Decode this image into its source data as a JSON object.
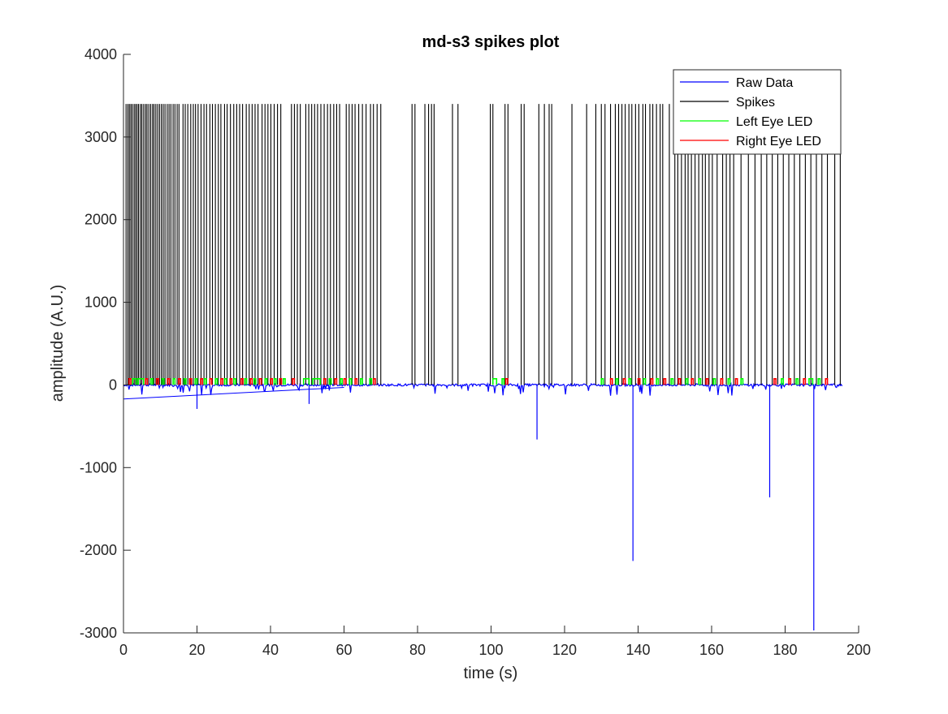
{
  "chart_data": {
    "type": "line",
    "title": "md-s3 spikes plot",
    "xlabel": "time (s)",
    "ylabel": "amplitude (A.U.)",
    "xlim": [
      0,
      200
    ],
    "ylim": [
      -3000,
      4000
    ],
    "xticks": [
      0,
      20,
      40,
      60,
      80,
      100,
      120,
      140,
      160,
      180,
      200
    ],
    "yticks": [
      -3000,
      -2000,
      -1000,
      0,
      1000,
      2000,
      3000,
      4000
    ],
    "xtick_labels": [
      "0",
      "20",
      "40",
      "60",
      "80",
      "100",
      "120",
      "140",
      "160",
      "180",
      "200"
    ],
    "ytick_labels": [
      "-3000",
      "-2000",
      "-1000",
      "0",
      "1000",
      "2000",
      "3000",
      "4000"
    ],
    "legend_position": "top-right",
    "grid": false,
    "series": [
      {
        "name": "Raw Data",
        "color": "#0000ff",
        "baseline": 0,
        "ramp": [
          [
            0,
            -170
          ],
          [
            60,
            -30
          ]
        ],
        "deflections": [
          {
            "x": 20,
            "y": -290
          },
          {
            "x": 50.5,
            "y": -230
          },
          {
            "x": 112.5,
            "y": -660
          },
          {
            "x": 138.6,
            "y": -2130
          },
          {
            "x": 175.8,
            "y": -1360
          },
          {
            "x": 187.8,
            "y": -2970
          }
        ],
        "end_x": 195.5
      },
      {
        "name": "Spikes",
        "color": "#000000",
        "height": 3400,
        "x": [
          0.7,
          1.2,
          1.6,
          2.0,
          2.4,
          2.9,
          3.3,
          3.7,
          4.1,
          4.6,
          5.0,
          5.5,
          6.0,
          6.4,
          6.9,
          7.4,
          7.9,
          8.3,
          8.8,
          9.3,
          9.8,
          10.3,
          10.8,
          11.3,
          11.9,
          12.4,
          12.9,
          13.5,
          14.0,
          14.6,
          15.1,
          16.2,
          16.8,
          17.5,
          18.3,
          19.0,
          19.6,
          20.3,
          21.1,
          21.9,
          22.6,
          23.5,
          24.2,
          25.0,
          25.8,
          26.5,
          27.5,
          28.2,
          29.1,
          30.0,
          30.8,
          31.6,
          32.4,
          33.4,
          34.2,
          35.0,
          35.8,
          36.6,
          37.7,
          38.5,
          39.3,
          40.1,
          41.0,
          41.9,
          42.8,
          45.7,
          46.5,
          47.3,
          48.1,
          49.6,
          50.4,
          51.2,
          52.0,
          52.8,
          53.7,
          54.6,
          55.5,
          56.3,
          57.2,
          58.0,
          58.8,
          60.6,
          61.4,
          62.2,
          63.0,
          64.0,
          65.0,
          66.0,
          67.2,
          68.0,
          69.0,
          70.0,
          78.5,
          79.3,
          82.0,
          83.0,
          83.8,
          84.5,
          89.5,
          91.0,
          99.8,
          100.5,
          103.8,
          104.6,
          108.2,
          109.0,
          113.0,
          114.5,
          115.8,
          116.5,
          122.0,
          126.0,
          128.5,
          130.0,
          131.0,
          132.5,
          133.8,
          134.7,
          135.6,
          136.5,
          137.5,
          138.3,
          139.3,
          140.2,
          141.3,
          142.0,
          143.2,
          144.0,
          145.0,
          146.0,
          146.7,
          148.5,
          150.0,
          150.8,
          151.8,
          152.8,
          153.6,
          154.5,
          155.5,
          156.5,
          157.5,
          158.3,
          159.3,
          160.2,
          161.5,
          163.0,
          164.0,
          165.0,
          166.0,
          168.0,
          170.0,
          171.8,
          173.5,
          175.0,
          176.5,
          178.0,
          179.5,
          181.0,
          182.5,
          184.0,
          185.5,
          187.0,
          188.5,
          190.0,
          191.5,
          193.5,
          195.0
        ]
      },
      {
        "name": "Left Eye LED",
        "color": "#00ff00",
        "pulse_height": 75,
        "pulses": [
          [
            2.5,
            3.5
          ],
          [
            4.0,
            5.5
          ],
          [
            7.5,
            8.0
          ],
          [
            10.5,
            11.0
          ],
          [
            13.5,
            14.0
          ],
          [
            16.5,
            17.0
          ],
          [
            19.5,
            20.0
          ],
          [
            22.0,
            22.5
          ],
          [
            25.0,
            25.5
          ],
          [
            27.5,
            28.0
          ],
          [
            30.0,
            30.5
          ],
          [
            33.0,
            33.5
          ],
          [
            35.5,
            36.0
          ],
          [
            38.5,
            39.0
          ],
          [
            41.0,
            41.5
          ],
          [
            43.5,
            44.0
          ],
          [
            49.0,
            50.5
          ],
          [
            51.5,
            53.5
          ],
          [
            56.0,
            56.5
          ],
          [
            59.0,
            59.5
          ],
          [
            61.5,
            62.0
          ],
          [
            64.5,
            65.0
          ],
          [
            67.0,
            67.5
          ],
          [
            100.5,
            101.5
          ],
          [
            103.0,
            103.5
          ],
          [
            130.0,
            130.5
          ],
          [
            134.0,
            134.5
          ],
          [
            137.5,
            138.0
          ],
          [
            141.5,
            142.0
          ],
          [
            145.0,
            145.5
          ],
          [
            149.0,
            149.5
          ],
          [
            153.0,
            153.5
          ],
          [
            156.5,
            157.0
          ],
          [
            160.5,
            161.0
          ],
          [
            164.5,
            165.0
          ],
          [
            168.0,
            168.5
          ],
          [
            179.0,
            179.5
          ],
          [
            183.0,
            183.5
          ],
          [
            186.5,
            187.5
          ],
          [
            189.0,
            189.5
          ]
        ]
      },
      {
        "name": "Right Eye LED",
        "color": "#ff0000",
        "pulse_height": 75,
        "pulses": [
          [
            1.5,
            2.0
          ],
          [
            6.0,
            6.5
          ],
          [
            9.0,
            9.5
          ],
          [
            12.0,
            12.5
          ],
          [
            15.0,
            15.5
          ],
          [
            18.0,
            18.5
          ],
          [
            21.0,
            21.5
          ],
          [
            23.5,
            24.0
          ],
          [
            26.5,
            27.0
          ],
          [
            29.0,
            29.5
          ],
          [
            32.0,
            32.5
          ],
          [
            34.5,
            35.0
          ],
          [
            37.0,
            37.5
          ],
          [
            40.0,
            40.5
          ],
          [
            42.5,
            43.0
          ],
          [
            46.0,
            46.5
          ],
          [
            54.5,
            55.0
          ],
          [
            57.5,
            58.0
          ],
          [
            60.0,
            60.5
          ],
          [
            63.0,
            63.5
          ],
          [
            68.0,
            68.5
          ],
          [
            104.0,
            104.5
          ],
          [
            132.5,
            133.0
          ],
          [
            136.0,
            136.5
          ],
          [
            140.0,
            140.5
          ],
          [
            143.5,
            144.0
          ],
          [
            147.0,
            147.5
          ],
          [
            151.0,
            151.5
          ],
          [
            154.5,
            155.0
          ],
          [
            158.5,
            159.0
          ],
          [
            162.5,
            163.0
          ],
          [
            166.5,
            167.0
          ],
          [
            177.0,
            177.5
          ],
          [
            181.0,
            181.5
          ],
          [
            185.0,
            185.5
          ],
          [
            191.0,
            191.5
          ]
        ]
      }
    ]
  }
}
